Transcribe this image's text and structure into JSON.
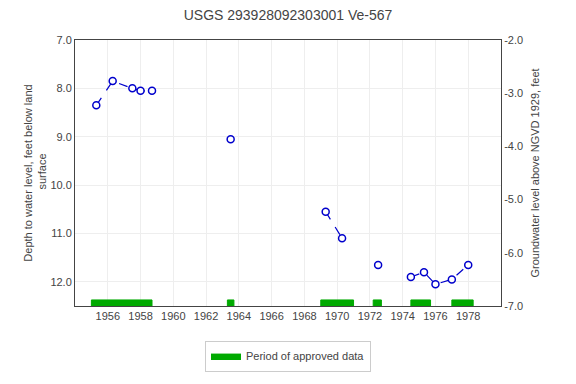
{
  "chart_data": {
    "type": "line",
    "title": "USGS 293928092303001 Ve-567",
    "ylabel": "Depth to water level, feet below land\n surface",
    "y2label": "Groundwater level above NGVD 1929, feet",
    "xlim": [
      1954,
      1980
    ],
    "xticks": [
      1956,
      1958,
      1960,
      1962,
      1964,
      1966,
      1968,
      1970,
      1972,
      1974,
      1976,
      1978
    ],
    "ylim": [
      12.5,
      7.0
    ],
    "yticks": [
      {
        "value": 7.0,
        "label": "7.0"
      },
      {
        "value": 8.0,
        "label": "8.0"
      },
      {
        "value": 9.0,
        "label": "9.0"
      },
      {
        "value": 10.0,
        "label": "10.0"
      },
      {
        "value": 11.0,
        "label": "11.0"
      },
      {
        "value": 12.0,
        "label": "12.0"
      }
    ],
    "y2lim": [
      -7.0,
      -2.0
    ],
    "y2ticks": [
      {
        "value": -2.0,
        "label": "-2.0"
      },
      {
        "value": -3.0,
        "label": "-3.0"
      },
      {
        "value": -4.0,
        "label": "-4.0"
      },
      {
        "value": -5.0,
        "label": "-5.0"
      },
      {
        "value": -6.0,
        "label": "-6.0"
      },
      {
        "value": -7.0,
        "label": "-7.0"
      }
    ],
    "grid": true,
    "legend": "bottom",
    "series": [
      {
        "x": [
          1955.3,
          1956.3,
          1957.5,
          1958.0,
          1958.7
        ],
        "values": [
          8.35,
          7.85,
          8.0,
          8.05,
          8.05
        ],
        "color": "#0000cc",
        "line_style": "dashed",
        "marker": "circle"
      },
      {
        "x": [
          1963.5
        ],
        "values": [
          9.05
        ],
        "color": "#0000cc",
        "line_style": "dashed",
        "marker": "circle"
      },
      {
        "x": [
          1969.3,
          1970.3
        ],
        "values": [
          10.55,
          11.1
        ],
        "color": "#0000cc",
        "line_style": "dashed",
        "marker": "circle"
      },
      {
        "x": [
          1972.5
        ],
        "values": [
          11.65
        ],
        "color": "#0000cc",
        "line_style": "dashed",
        "marker": "circle"
      },
      {
        "x": [
          1974.5,
          1975.3,
          1976.0,
          1977.0,
          1978.0
        ],
        "values": [
          11.9,
          11.8,
          12.05,
          11.95,
          11.65
        ],
        "color": "#0000cc",
        "line_style": "dashed",
        "marker": "circle"
      },
      {
        "name": "Period of approved data",
        "type": "band",
        "color": "#00aa00",
        "ranges": [
          [
            1955.0,
            1958.7
          ],
          [
            1963.3,
            1963.7
          ],
          [
            1969.0,
            1971.0
          ],
          [
            1972.2,
            1972.7
          ],
          [
            1974.5,
            1975.7
          ],
          [
            1977.0,
            1978.3
          ]
        ],
        "y": 12.45,
        "height": 0.15
      }
    ]
  }
}
